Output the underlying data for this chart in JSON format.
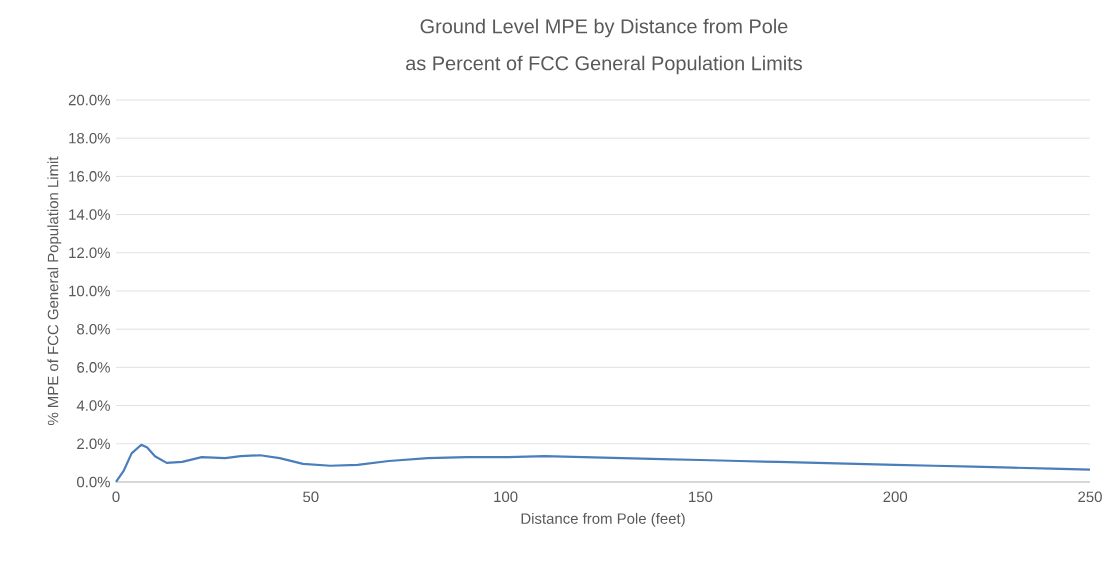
{
  "chart_data": {
    "type": "line",
    "title": "Ground Level MPE by Distance from Pole",
    "subtitle": "as Percent of FCC General Population Limits",
    "xlabel": "Distance from Pole (feet)",
    "ylabel": "% MPE of FCC General Population Limit",
    "x": [
      0,
      2,
      4,
      6.5,
      8,
      10,
      13,
      17,
      22,
      28,
      32,
      37,
      42,
      48,
      55,
      62,
      70,
      80,
      90,
      100,
      110,
      120,
      130,
      140,
      150,
      160,
      170,
      180,
      190,
      200,
      210,
      220,
      230,
      240,
      250
    ],
    "series": [
      {
        "color": "#4a7ebb",
        "values": [
          0,
          0.6,
          1.5,
          1.95,
          1.8,
          1.35,
          1.0,
          1.05,
          1.3,
          1.25,
          1.35,
          1.4,
          1.25,
          0.95,
          0.85,
          0.9,
          1.1,
          1.25,
          1.3,
          1.3,
          1.35,
          1.3,
          1.25,
          1.2,
          1.15,
          1.1,
          1.05,
          1.0,
          0.95,
          0.9,
          0.85,
          0.8,
          0.75,
          0.7,
          0.65
        ]
      }
    ],
    "xlim": [
      0,
      250
    ],
    "xticks": [
      0,
      50,
      100,
      150,
      200,
      250
    ],
    "ylim": [
      0,
      20
    ],
    "yticks": [
      {
        "value": 0,
        "label": "0.0%"
      },
      {
        "value": 2,
        "label": "2.0%"
      },
      {
        "value": 4,
        "label": "4.0%"
      },
      {
        "value": 6,
        "label": "6.0%"
      },
      {
        "value": 8,
        "label": "8.0%"
      },
      {
        "value": 10,
        "label": "10.0%"
      },
      {
        "value": 12,
        "label": "12.0%"
      },
      {
        "value": 14,
        "label": "14.0%"
      },
      {
        "value": 16,
        "label": "16.0%"
      },
      {
        "value": 18,
        "label": "18.0%"
      },
      {
        "value": 20,
        "label": "20.0%"
      }
    ],
    "grid": "y",
    "marker": "none",
    "line_style": "solid"
  }
}
